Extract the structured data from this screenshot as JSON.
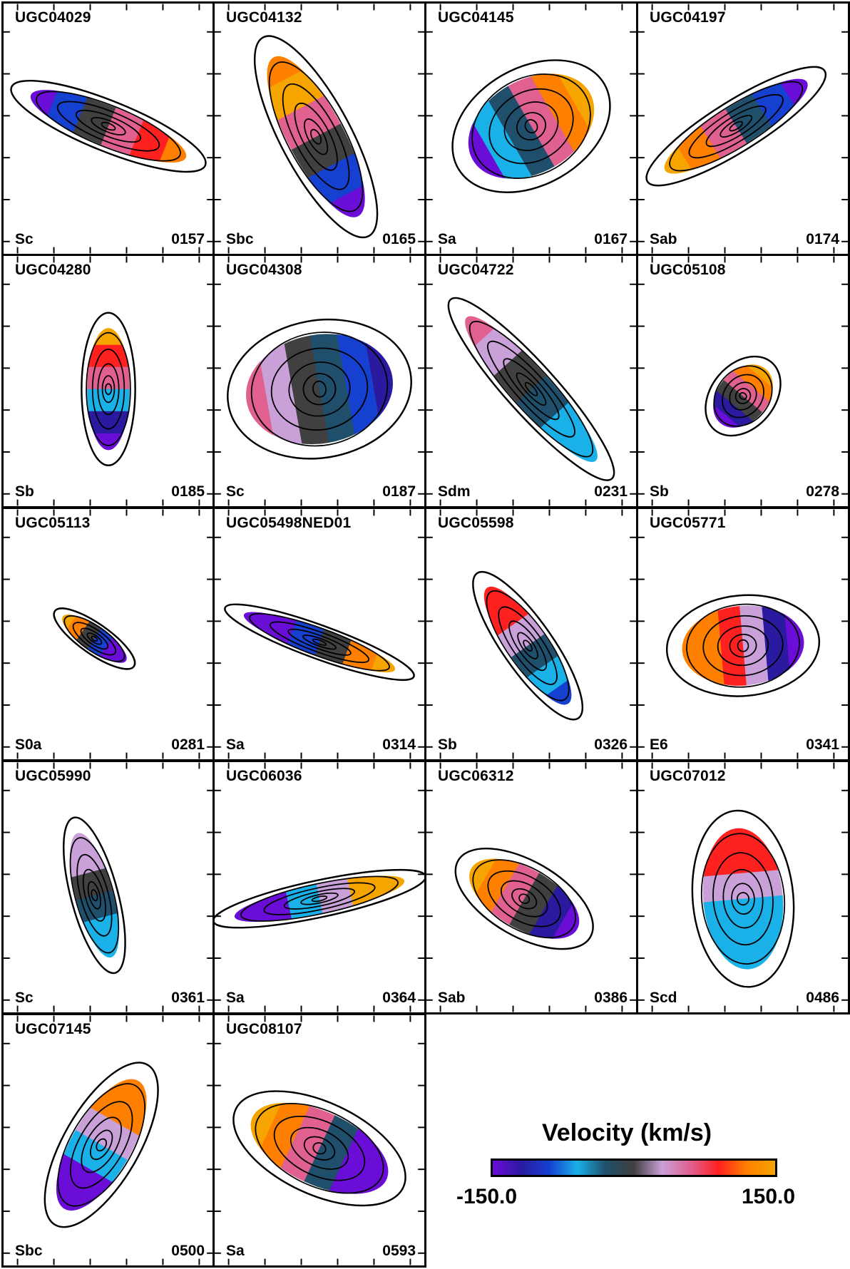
{
  "panels": [
    {
      "name": "UGC04029",
      "type": "Sc",
      "id": "0157"
    },
    {
      "name": "UGC04132",
      "type": "Sbc",
      "id": "0165"
    },
    {
      "name": "UGC04145",
      "type": "Sa",
      "id": "0167"
    },
    {
      "name": "UGC04197",
      "type": "Sab",
      "id": "0174"
    },
    {
      "name": "UGC04280",
      "type": "Sb",
      "id": "0185"
    },
    {
      "name": "UGC04308",
      "type": "Sc",
      "id": "0187"
    },
    {
      "name": "UGC04722",
      "type": "Sdm",
      "id": "0231"
    },
    {
      "name": "UGC05108",
      "type": "Sb",
      "id": "0278"
    },
    {
      "name": "UGC05113",
      "type": "S0a",
      "id": "0281"
    },
    {
      "name": "UGC05498NED01",
      "type": "Sa",
      "id": "0314"
    },
    {
      "name": "UGC05598",
      "type": "Sb",
      "id": "0326"
    },
    {
      "name": "UGC05771",
      "type": "E6",
      "id": "0341"
    },
    {
      "name": "UGC05990",
      "type": "Sc",
      "id": "0361"
    },
    {
      "name": "UGC06036",
      "type": "Sa",
      "id": "0364"
    },
    {
      "name": "UGC06312",
      "type": "Sab",
      "id": "0386"
    },
    {
      "name": "UGC07012",
      "type": "Scd",
      "id": "0486"
    },
    {
      "name": "UGC07145",
      "type": "Sbc",
      "id": "0500"
    },
    {
      "name": "UGC08107",
      "type": "Sa",
      "id": "0593"
    }
  ],
  "legend": {
    "title": "Velocity (km/s)",
    "min_label": "-150.0",
    "max_label": "150.0",
    "colors": [
      "#6a0dd6",
      "#2a1aa0",
      "#1540d0",
      "#1ab0e8",
      "#1f4f6a",
      "#404040",
      "#c9a0d8",
      "#e06090",
      "#ff2020",
      "#ff8000",
      "#f5a400"
    ]
  }
}
